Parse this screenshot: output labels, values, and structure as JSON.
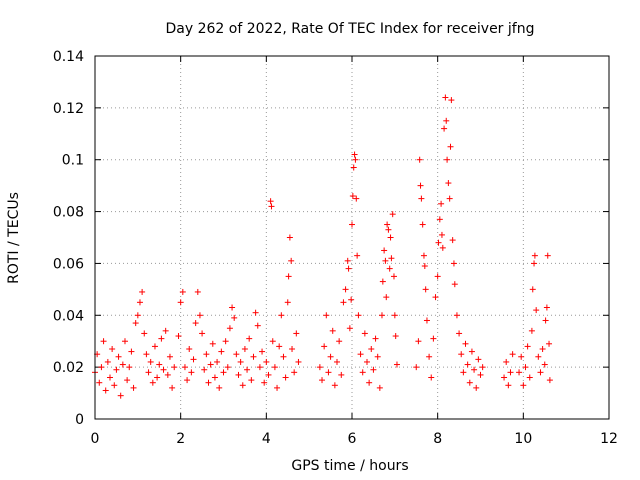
{
  "chart_data": {
    "type": "scatter",
    "title": "Day 262 of 2022, Rate Of TEC Index for receiver jfng",
    "xlabel": "GPS time / hours",
    "ylabel": "ROTI / TECUs",
    "xlim": [
      0,
      12
    ],
    "ylim": [
      0,
      0.14
    ],
    "xticks": [
      0,
      2,
      4,
      6,
      8,
      10,
      12
    ],
    "yticks": [
      0,
      0.02,
      0.04,
      0.06,
      0.08,
      0.1,
      0.12,
      0.14
    ],
    "xtick_labels": [
      "0",
      "2",
      "4",
      "6",
      "8",
      "10",
      "12"
    ],
    "ytick_labels": [
      "0",
      "0.02",
      "0.04",
      "0.06",
      "0.08",
      "0.1",
      "0.12",
      "0.14"
    ],
    "grid": true,
    "marker": "+",
    "marker_color": "#ff0000",
    "series": [
      {
        "name": "ROTI",
        "points": [
          [
            0.0,
            0.018
          ],
          [
            0.05,
            0.025
          ],
          [
            0.1,
            0.014
          ],
          [
            0.15,
            0.02
          ],
          [
            0.2,
            0.03
          ],
          [
            0.25,
            0.011
          ],
          [
            0.3,
            0.022
          ],
          [
            0.35,
            0.016
          ],
          [
            0.4,
            0.027
          ],
          [
            0.45,
            0.013
          ],
          [
            0.5,
            0.019
          ],
          [
            0.55,
            0.024
          ],
          [
            0.6,
            0.009
          ],
          [
            0.65,
            0.021
          ],
          [
            0.7,
            0.03
          ],
          [
            0.75,
            0.015
          ],
          [
            0.8,
            0.02
          ],
          [
            0.85,
            0.026
          ],
          [
            0.9,
            0.012
          ],
          [
            0.95,
            0.037
          ],
          [
            1.0,
            0.04
          ],
          [
            1.05,
            0.045
          ],
          [
            1.1,
            0.049
          ],
          [
            1.15,
            0.033
          ],
          [
            1.2,
            0.025
          ],
          [
            1.25,
            0.018
          ],
          [
            1.3,
            0.022
          ],
          [
            1.35,
            0.014
          ],
          [
            1.4,
            0.028
          ],
          [
            1.45,
            0.016
          ],
          [
            1.5,
            0.021
          ],
          [
            1.55,
            0.031
          ],
          [
            1.6,
            0.019
          ],
          [
            1.65,
            0.034
          ],
          [
            1.7,
            0.017
          ],
          [
            1.75,
            0.024
          ],
          [
            1.8,
            0.012
          ],
          [
            1.85,
            0.02
          ],
          [
            1.95,
            0.032
          ],
          [
            2.0,
            0.045
          ],
          [
            2.05,
            0.049
          ],
          [
            2.1,
            0.02
          ],
          [
            2.15,
            0.015
          ],
          [
            2.2,
            0.027
          ],
          [
            2.25,
            0.018
          ],
          [
            2.3,
            0.023
          ],
          [
            2.35,
            0.037
          ],
          [
            2.4,
            0.049
          ],
          [
            2.45,
            0.04
          ],
          [
            2.5,
            0.033
          ],
          [
            2.55,
            0.019
          ],
          [
            2.6,
            0.025
          ],
          [
            2.65,
            0.014
          ],
          [
            2.7,
            0.021
          ],
          [
            2.75,
            0.029
          ],
          [
            2.8,
            0.016
          ],
          [
            2.85,
            0.022
          ],
          [
            2.9,
            0.012
          ],
          [
            2.95,
            0.026
          ],
          [
            3.0,
            0.018
          ],
          [
            3.05,
            0.03
          ],
          [
            3.1,
            0.02
          ],
          [
            3.15,
            0.035
          ],
          [
            3.2,
            0.043
          ],
          [
            3.25,
            0.039
          ],
          [
            3.3,
            0.025
          ],
          [
            3.35,
            0.017
          ],
          [
            3.4,
            0.022
          ],
          [
            3.45,
            0.013
          ],
          [
            3.5,
            0.027
          ],
          [
            3.55,
            0.019
          ],
          [
            3.6,
            0.031
          ],
          [
            3.65,
            0.015
          ],
          [
            3.7,
            0.024
          ],
          [
            3.75,
            0.041
          ],
          [
            3.8,
            0.036
          ],
          [
            3.85,
            0.02
          ],
          [
            3.9,
            0.026
          ],
          [
            3.95,
            0.014
          ],
          [
            4.0,
            0.022
          ],
          [
            4.05,
            0.017
          ],
          [
            4.1,
            0.084
          ],
          [
            4.12,
            0.082
          ],
          [
            4.15,
            0.03
          ],
          [
            4.2,
            0.02
          ],
          [
            4.25,
            0.012
          ],
          [
            4.3,
            0.028
          ],
          [
            4.35,
            0.04
          ],
          [
            4.4,
            0.024
          ],
          [
            4.45,
            0.016
          ],
          [
            4.5,
            0.045
          ],
          [
            4.52,
            0.055
          ],
          [
            4.55,
            0.07
          ],
          [
            4.58,
            0.061
          ],
          [
            4.6,
            0.027
          ],
          [
            4.65,
            0.018
          ],
          [
            4.7,
            0.033
          ],
          [
            4.75,
            0.022
          ],
          [
            5.25,
            0.02
          ],
          [
            5.3,
            0.015
          ],
          [
            5.35,
            0.028
          ],
          [
            5.4,
            0.04
          ],
          [
            5.45,
            0.018
          ],
          [
            5.5,
            0.024
          ],
          [
            5.55,
            0.034
          ],
          [
            5.6,
            0.013
          ],
          [
            5.65,
            0.022
          ],
          [
            5.7,
            0.03
          ],
          [
            5.75,
            0.017
          ],
          [
            5.8,
            0.045
          ],
          [
            5.85,
            0.05
          ],
          [
            5.9,
            0.061
          ],
          [
            5.92,
            0.058
          ],
          [
            5.95,
            0.035
          ],
          [
            5.98,
            0.046
          ],
          [
            6.0,
            0.075
          ],
          [
            6.02,
            0.086
          ],
          [
            6.04,
            0.097
          ],
          [
            6.06,
            0.102
          ],
          [
            6.08,
            0.1
          ],
          [
            6.1,
            0.085
          ],
          [
            6.12,
            0.063
          ],
          [
            6.15,
            0.04
          ],
          [
            6.2,
            0.025
          ],
          [
            6.25,
            0.018
          ],
          [
            6.3,
            0.033
          ],
          [
            6.35,
            0.022
          ],
          [
            6.4,
            0.014
          ],
          [
            6.45,
            0.027
          ],
          [
            6.5,
            0.019
          ],
          [
            6.55,
            0.031
          ],
          [
            6.6,
            0.024
          ],
          [
            6.65,
            0.012
          ],
          [
            6.7,
            0.04
          ],
          [
            6.72,
            0.053
          ],
          [
            6.75,
            0.065
          ],
          [
            6.78,
            0.061
          ],
          [
            6.8,
            0.047
          ],
          [
            6.82,
            0.075
          ],
          [
            6.85,
            0.073
          ],
          [
            6.88,
            0.058
          ],
          [
            6.9,
            0.07
          ],
          [
            6.92,
            0.062
          ],
          [
            6.95,
            0.079
          ],
          [
            6.98,
            0.055
          ],
          [
            7.0,
            0.04
          ],
          [
            7.02,
            0.032
          ],
          [
            7.05,
            0.021
          ],
          [
            7.5,
            0.02
          ],
          [
            7.55,
            0.03
          ],
          [
            7.58,
            0.1
          ],
          [
            7.6,
            0.09
          ],
          [
            7.62,
            0.085
          ],
          [
            7.65,
            0.075
          ],
          [
            7.68,
            0.063
          ],
          [
            7.7,
            0.059
          ],
          [
            7.72,
            0.05
          ],
          [
            7.75,
            0.038
          ],
          [
            7.8,
            0.024
          ],
          [
            7.85,
            0.016
          ],
          [
            7.9,
            0.031
          ],
          [
            7.95,
            0.047
          ],
          [
            8.0,
            0.055
          ],
          [
            8.02,
            0.068
          ],
          [
            8.05,
            0.077
          ],
          [
            8.08,
            0.083
          ],
          [
            8.1,
            0.071
          ],
          [
            8.12,
            0.066
          ],
          [
            8.15,
            0.112
          ],
          [
            8.18,
            0.124
          ],
          [
            8.2,
            0.115
          ],
          [
            8.22,
            0.1
          ],
          [
            8.25,
            0.091
          ],
          [
            8.28,
            0.085
          ],
          [
            8.3,
            0.105
          ],
          [
            8.32,
            0.123
          ],
          [
            8.35,
            0.069
          ],
          [
            8.38,
            0.06
          ],
          [
            8.4,
            0.052
          ],
          [
            8.45,
            0.04
          ],
          [
            8.5,
            0.033
          ],
          [
            8.55,
            0.025
          ],
          [
            8.6,
            0.018
          ],
          [
            8.65,
            0.029
          ],
          [
            8.7,
            0.021
          ],
          [
            8.75,
            0.014
          ],
          [
            8.8,
            0.026
          ],
          [
            8.85,
            0.019
          ],
          [
            8.9,
            0.012
          ],
          [
            8.95,
            0.023
          ],
          [
            9.0,
            0.017
          ],
          [
            9.05,
            0.02
          ],
          [
            9.55,
            0.016
          ],
          [
            9.6,
            0.022
          ],
          [
            9.65,
            0.013
          ],
          [
            9.7,
            0.018
          ],
          [
            9.75,
            0.025
          ],
          [
            9.9,
            0.018
          ],
          [
            9.95,
            0.024
          ],
          [
            10.0,
            0.013
          ],
          [
            10.05,
            0.02
          ],
          [
            10.1,
            0.028
          ],
          [
            10.15,
            0.016
          ],
          [
            10.2,
            0.034
          ],
          [
            10.22,
            0.05
          ],
          [
            10.25,
            0.06
          ],
          [
            10.27,
            0.063
          ],
          [
            10.3,
            0.042
          ],
          [
            10.35,
            0.024
          ],
          [
            10.4,
            0.018
          ],
          [
            10.45,
            0.027
          ],
          [
            10.5,
            0.021
          ],
          [
            10.52,
            0.038
          ],
          [
            10.55,
            0.043
          ],
          [
            10.57,
            0.063
          ],
          [
            10.6,
            0.029
          ],
          [
            10.62,
            0.015
          ]
        ]
      }
    ]
  }
}
